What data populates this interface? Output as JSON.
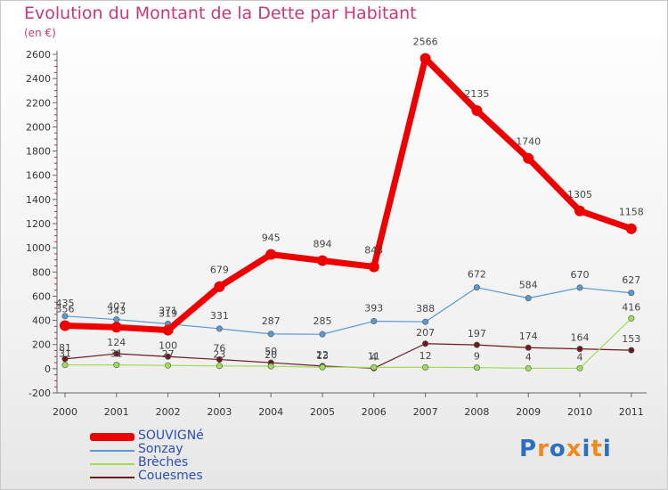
{
  "title": "Evolution du Montant de la Dette par Habitant",
  "unit_label": "(en €)",
  "logo": {
    "text": "Proxiti",
    "colors": [
      "#2b6fc0",
      "#f08a1d",
      "#2b6fc0",
      "#f08a1d",
      "#2b6fc0",
      "#f08a1d",
      "#2b6fc0"
    ]
  },
  "chart_data": {
    "type": "line",
    "title": "Evolution du Montant de la Dette par Habitant",
    "ylabel": "(en €)",
    "xlabel": "",
    "x": [
      "2000",
      "2001",
      "2002",
      "2003",
      "2004",
      "2005",
      "2006",
      "2007",
      "2008",
      "2009",
      "2010",
      "2011"
    ],
    "ylim": [
      -200,
      2600
    ],
    "yticks": [
      -200,
      0,
      200,
      400,
      600,
      800,
      1000,
      1200,
      1400,
      1600,
      1800,
      2000,
      2200,
      2400,
      2600
    ],
    "grid": false,
    "legend_position": "bottom-left",
    "series": [
      {
        "name": "SOUVIGNé",
        "color": "#ee0000",
        "values": [
          356,
          343,
          319,
          679,
          945,
          894,
          843,
          2566,
          2135,
          1740,
          1305,
          1158
        ],
        "labels": [
          "356",
          "343",
          "319",
          "679",
          "945",
          "894",
          "843",
          "2566",
          "2135",
          "1740",
          "1305",
          "1158"
        ]
      },
      {
        "name": "Sonzay",
        "color": "#5a98d0",
        "values": [
          435,
          407,
          371,
          331,
          287,
          285,
          393,
          388,
          672,
          584,
          670,
          627
        ],
        "labels": [
          "435",
          "407",
          "371",
          "331",
          "287",
          "285",
          "393",
          "388",
          "672",
          "584",
          "670",
          "627"
        ]
      },
      {
        "name": "Brèches",
        "color": "#9edd55",
        "values": [
          31,
          31,
          27,
          23,
          20,
          13,
          11,
          12,
          9,
          4,
          4,
          416
        ],
        "labels": [
          "31",
          "31",
          "27",
          "23",
          "20",
          "13",
          "11",
          "12",
          "9",
          "4",
          "4",
          "416"
        ]
      },
      {
        "name": "Couesmes",
        "color": "#6e1a1a",
        "values": [
          81,
          124,
          100,
          76,
          50,
          22,
          4,
          207,
          197,
          174,
          164,
          153
        ],
        "labels": [
          "81",
          "124",
          "100",
          "76",
          "50",
          "22",
          "4",
          "207",
          "197",
          "174",
          "164",
          "153"
        ]
      }
    ]
  }
}
